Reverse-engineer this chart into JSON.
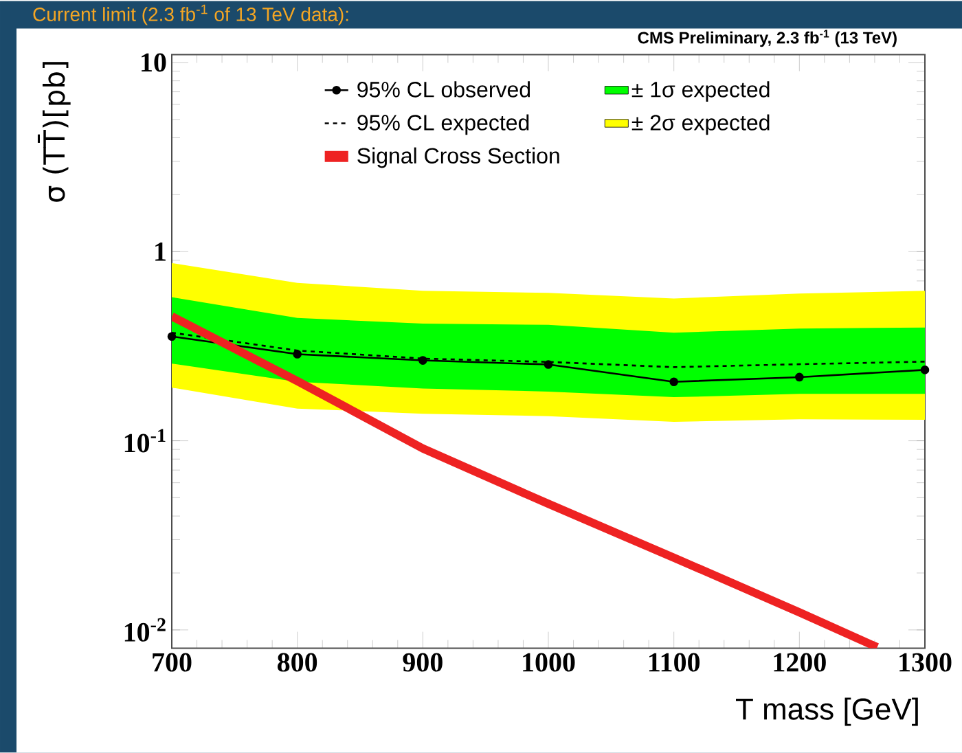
{
  "chart_data": {
    "type": "line",
    "title": "Current limit (2.3 fb$^{-1}$ of 13 TeV data):",
    "annotations": [
      "CMS Preliminary, 2.3 fb$^{-1}$ (13 TeV)"
    ],
    "xlabel": "T mass [GeV]",
    "ylabel": "σ (TT̄)[pb]",
    "x": [
      700,
      800,
      900,
      1000,
      1100,
      1200,
      1300
    ],
    "series": [
      {
        "name": "95% CL observed",
        "color": "#000000",
        "marker": "circle",
        "line_style": "solid",
        "values": [
          0.356,
          0.287,
          0.266,
          0.253,
          0.205,
          0.217,
          0.237
        ]
      },
      {
        "name": "± 1σ expected",
        "color": "#00ff00",
        "values": [
          null,
          null,
          null,
          null,
          null,
          null,
          null
        ],
        "lower": [
          0.256,
          0.205,
          0.189,
          0.182,
          0.17,
          0.177,
          0.177
        ],
        "upper": [
          0.574,
          0.446,
          0.416,
          0.41,
          0.373,
          0.392,
          0.397
        ]
      },
      {
        "name": "95% CL expected",
        "color": "#000000",
        "marker": "none",
        "line_style": "dashed",
        "values": [
          0.373,
          0.3,
          0.272,
          0.261,
          0.245,
          0.254,
          0.262
        ]
      },
      {
        "name": "± 2σ expected",
        "color": "#ffff00",
        "values": [
          null,
          null,
          null,
          null,
          null,
          null,
          null
        ],
        "lower": [
          0.191,
          0.148,
          0.139,
          0.135,
          0.126,
          0.13,
          0.129
        ],
        "upper": [
          0.87,
          0.684,
          0.621,
          0.605,
          0.565,
          0.6,
          0.621
        ]
      },
      {
        "name": "Signal Cross Section",
        "color": "#ee2222",
        "marker": "none",
        "line_style": "solid",
        "x": [
          700,
          800,
          900,
          1000,
          1100,
          1200,
          1262
        ],
        "values": [
          0.455,
          0.207,
          0.091,
          0.0464,
          0.0241,
          0.0124,
          0.0081
        ]
      }
    ],
    "xlim": [
      700,
      1300
    ],
    "ylim": [
      0.008,
      11
    ],
    "xticks": [
      700,
      800,
      900,
      1000,
      1100,
      1200,
      1300
    ],
    "yticks": [
      {
        "value": 0.01,
        "label": "10$^{-2}$"
      },
      {
        "value": 0.1,
        "label": "10$^{-1}$"
      },
      {
        "value": 1,
        "label": "1"
      },
      {
        "value": 10,
        "label": "10"
      }
    ],
    "log": "y",
    "grid": false,
    "legend": "top"
  }
}
